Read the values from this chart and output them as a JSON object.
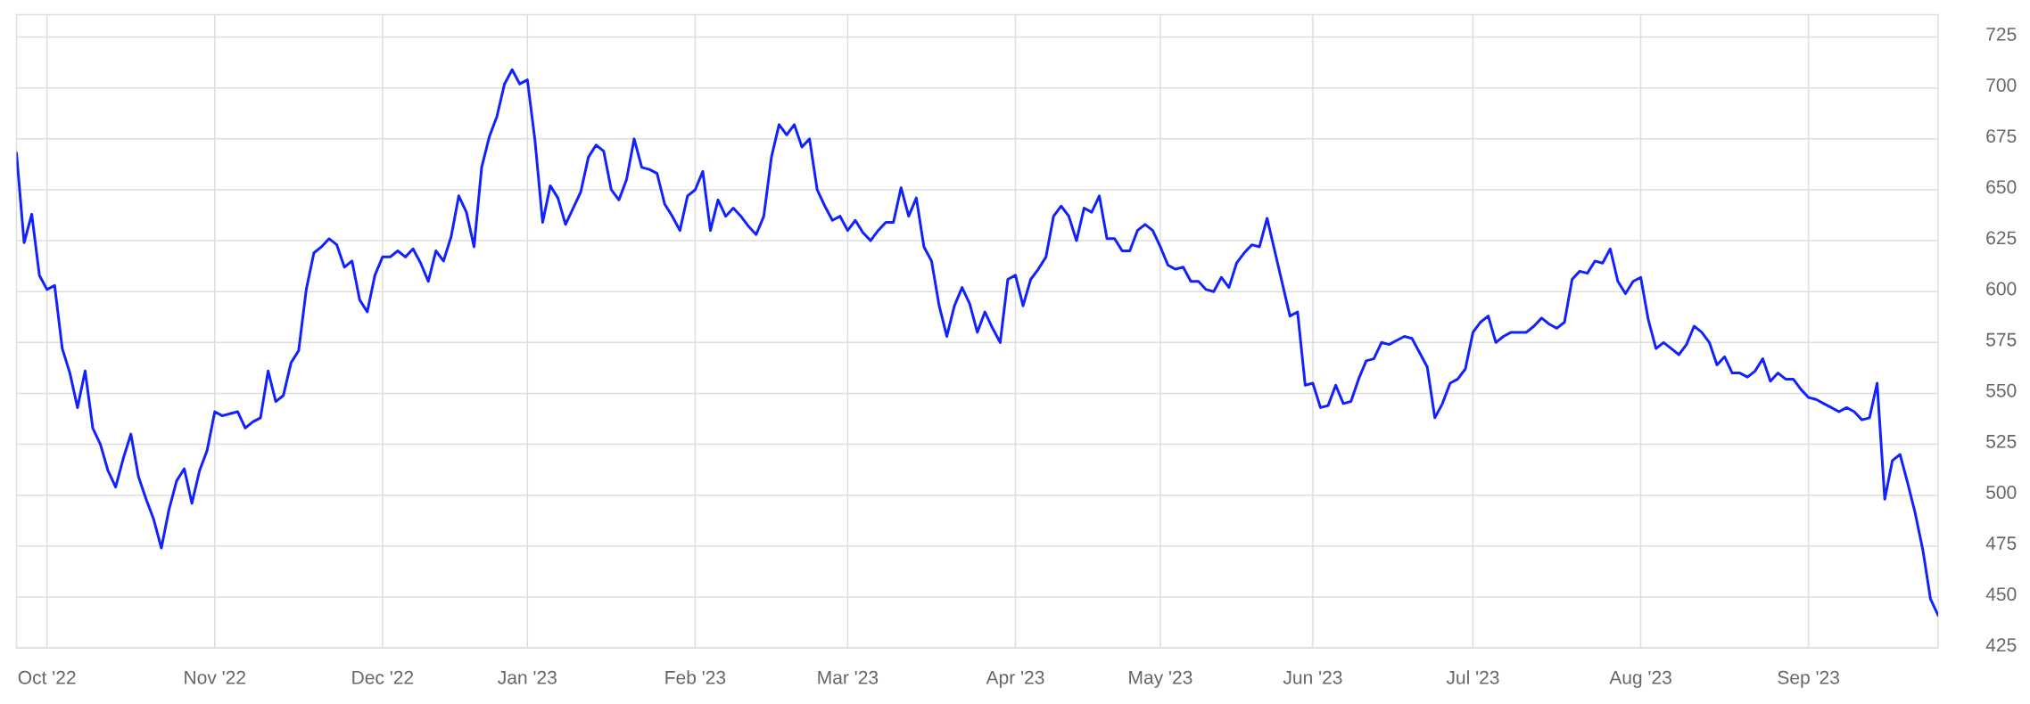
{
  "chart_data": {
    "type": "line",
    "color": "#1122ff",
    "categories": [
      null,
      null,
      null,
      null,
      "Oct '22",
      null,
      null,
      null,
      null,
      null,
      null,
      null,
      null,
      null,
      null,
      null,
      null,
      null,
      null,
      null,
      null,
      null,
      null,
      null,
      null,
      null,
      "Nov '22",
      null,
      null,
      null,
      null,
      null,
      null,
      null,
      null,
      null,
      null,
      null,
      null,
      null,
      null,
      null,
      null,
      null,
      null,
      null,
      null,
      null,
      "Dec '22",
      null,
      null,
      null,
      null,
      null,
      null,
      null,
      null,
      null,
      null,
      null,
      null,
      null,
      null,
      null,
      null,
      null,
      null,
      "Jan '23",
      null,
      null,
      null,
      null,
      null,
      null,
      null,
      null,
      null,
      null,
      null,
      null,
      null,
      null,
      null,
      null,
      null,
      null,
      null,
      null,
      null,
      "Feb '23",
      null,
      null,
      null,
      null,
      null,
      null,
      null,
      null,
      null,
      null,
      null,
      null,
      null,
      null,
      null,
      null,
      null,
      null,
      null,
      "Mar '23",
      null,
      null,
      null,
      null,
      null,
      null,
      null,
      null,
      null,
      null,
      null,
      null,
      null,
      null,
      null,
      null,
      null,
      null,
      null,
      null,
      null,
      "Apr '23",
      null,
      null,
      null,
      null,
      null,
      null,
      null,
      null,
      null,
      null,
      null,
      null,
      null,
      null,
      null,
      null,
      null,
      null,
      "May '23",
      null,
      null,
      null,
      null,
      null,
      null,
      null,
      null,
      null,
      null,
      null,
      null,
      null,
      null,
      null,
      null,
      null,
      null,
      null,
      "Jun '23",
      null,
      null,
      null,
      null,
      null,
      null,
      null,
      null,
      null,
      null,
      null,
      null,
      null,
      null,
      null,
      null,
      null,
      null,
      null,
      null,
      "Jul '23",
      null,
      null,
      null,
      null,
      null,
      null,
      null,
      null,
      null,
      null,
      null,
      null,
      null,
      null,
      null,
      null,
      null,
      null,
      null,
      null,
      null,
      "Aug '23",
      null,
      null,
      null,
      null,
      null,
      null,
      null,
      null,
      null,
      null,
      null,
      null,
      null,
      null,
      null,
      null,
      null,
      null,
      null,
      null,
      null,
      "Sep '23",
      null,
      null,
      null,
      null,
      null,
      null,
      null,
      null,
      null,
      null,
      null,
      null,
      null,
      null,
      null,
      null,
      null
    ],
    "values": [
      668,
      624,
      638,
      608,
      601,
      603,
      572,
      560,
      543,
      561,
      533,
      525,
      512,
      504,
      518,
      530,
      509,
      498,
      488,
      474,
      493,
      507,
      513,
      496,
      512,
      522,
      541,
      539,
      540,
      541,
      533,
      536,
      538,
      561,
      546,
      549,
      565,
      571,
      601,
      619,
      622,
      626,
      623,
      612,
      615,
      596,
      590,
      608,
      617,
      617,
      620,
      617,
      621,
      614,
      605,
      620,
      615,
      627,
      647,
      639,
      622,
      661,
      676,
      686,
      702,
      709,
      702,
      704,
      674,
      634,
      652,
      646,
      633,
      641,
      649,
      666,
      672,
      669,
      650,
      645,
      655,
      675,
      661,
      660,
      658,
      643,
      637,
      630,
      647,
      650,
      659,
      630,
      645,
      637,
      641,
      637,
      632,
      628,
      637,
      666,
      682,
      677,
      682,
      671,
      675,
      650,
      642,
      635,
      637,
      630,
      635,
      629,
      625,
      630,
      634,
      634,
      651,
      637,
      646,
      622,
      615,
      593,
      578,
      593,
      602,
      594,
      580,
      590,
      582,
      575,
      606,
      608,
      593,
      606,
      611,
      617,
      637,
      642,
      637,
      625,
      641,
      639,
      647,
      626,
      626,
      620,
      620,
      630,
      633,
      630,
      622,
      613,
      611,
      612,
      605,
      605,
      601,
      600,
      607,
      602,
      614,
      619,
      623,
      622,
      636,
      620,
      604,
      588,
      590,
      554,
      555,
      543,
      544,
      554,
      545,
      546,
      557,
      566,
      567,
      575,
      574,
      576,
      578,
      577,
      570,
      563,
      538,
      545,
      555,
      557,
      562,
      580,
      585,
      588,
      575,
      578,
      580,
      580,
      580,
      583,
      587,
      584,
      582,
      585,
      606,
      610,
      609,
      615,
      614,
      621,
      605,
      599,
      605,
      607,
      586,
      572,
      575,
      572,
      569,
      574,
      583,
      580,
      575,
      564,
      568,
      560,
      560,
      558,
      561,
      567,
      556,
      560,
      557,
      557,
      552,
      548,
      547,
      545,
      543,
      541,
      543,
      541,
      537,
      538,
      555,
      498,
      517,
      520,
      506,
      491,
      473,
      449,
      441
    ],
    "ylim": [
      425,
      736
    ],
    "yticks": [
      425,
      450,
      475,
      500,
      525,
      550,
      575,
      600,
      625,
      650,
      675,
      700,
      725
    ],
    "grid": true
  }
}
